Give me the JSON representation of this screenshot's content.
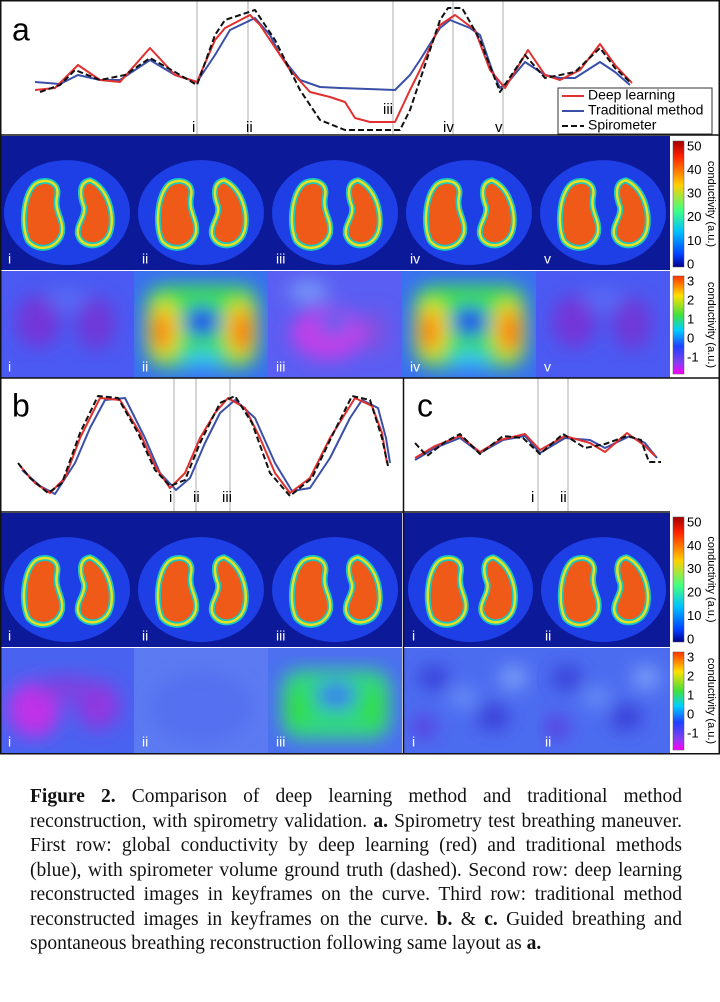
{
  "panels": [
    {
      "label": "a",
      "legend": [
        "Deep learning",
        "Traditional method",
        "Spirometer"
      ],
      "keyframes": [
        "i",
        "ii",
        "iii",
        "iv",
        "v"
      ]
    },
    {
      "label": "b",
      "keyframes": [
        "i",
        "ii",
        "iii"
      ]
    },
    {
      "label": "c",
      "keyframes": [
        "i",
        "ii"
      ]
    }
  ],
  "colorbars": [
    {
      "title": "conductivity (a.u.)",
      "ticks": [
        "50",
        "40",
        "30",
        "20",
        "10",
        "0"
      ]
    },
    {
      "title": "conductivity (a.u.)",
      "ticks": [
        "3",
        "2",
        "1",
        "0",
        "-1"
      ]
    },
    {
      "title": "conductivity (a.u.)",
      "ticks": [
        "50",
        "40",
        "30",
        "20",
        "10",
        "0"
      ]
    },
    {
      "title": "conductivity (a.u.)",
      "ticks": [
        "3",
        "2",
        "1",
        "0",
        "-1"
      ]
    }
  ],
  "caption": {
    "parts": [
      "Figure 2.",
      " Comparison of deep learning method and traditional method reconstruction, with spirometry validation. ",
      "a.",
      " Spirometry test breathing maneuver. First row: global conductivity by deep learning (red) and traditional methods (blue), with spirometer volume ground truth (dashed). Second row: deep learning reconstructed images in keyframes on the curve. Third row: traditional method reconstructed images in keyframes on the curve. ",
      "b.",
      " & ",
      "c.",
      " Guided breathing and spontaneous breathing reconstruction following same layout as ",
      "a."
    ]
  }
}
